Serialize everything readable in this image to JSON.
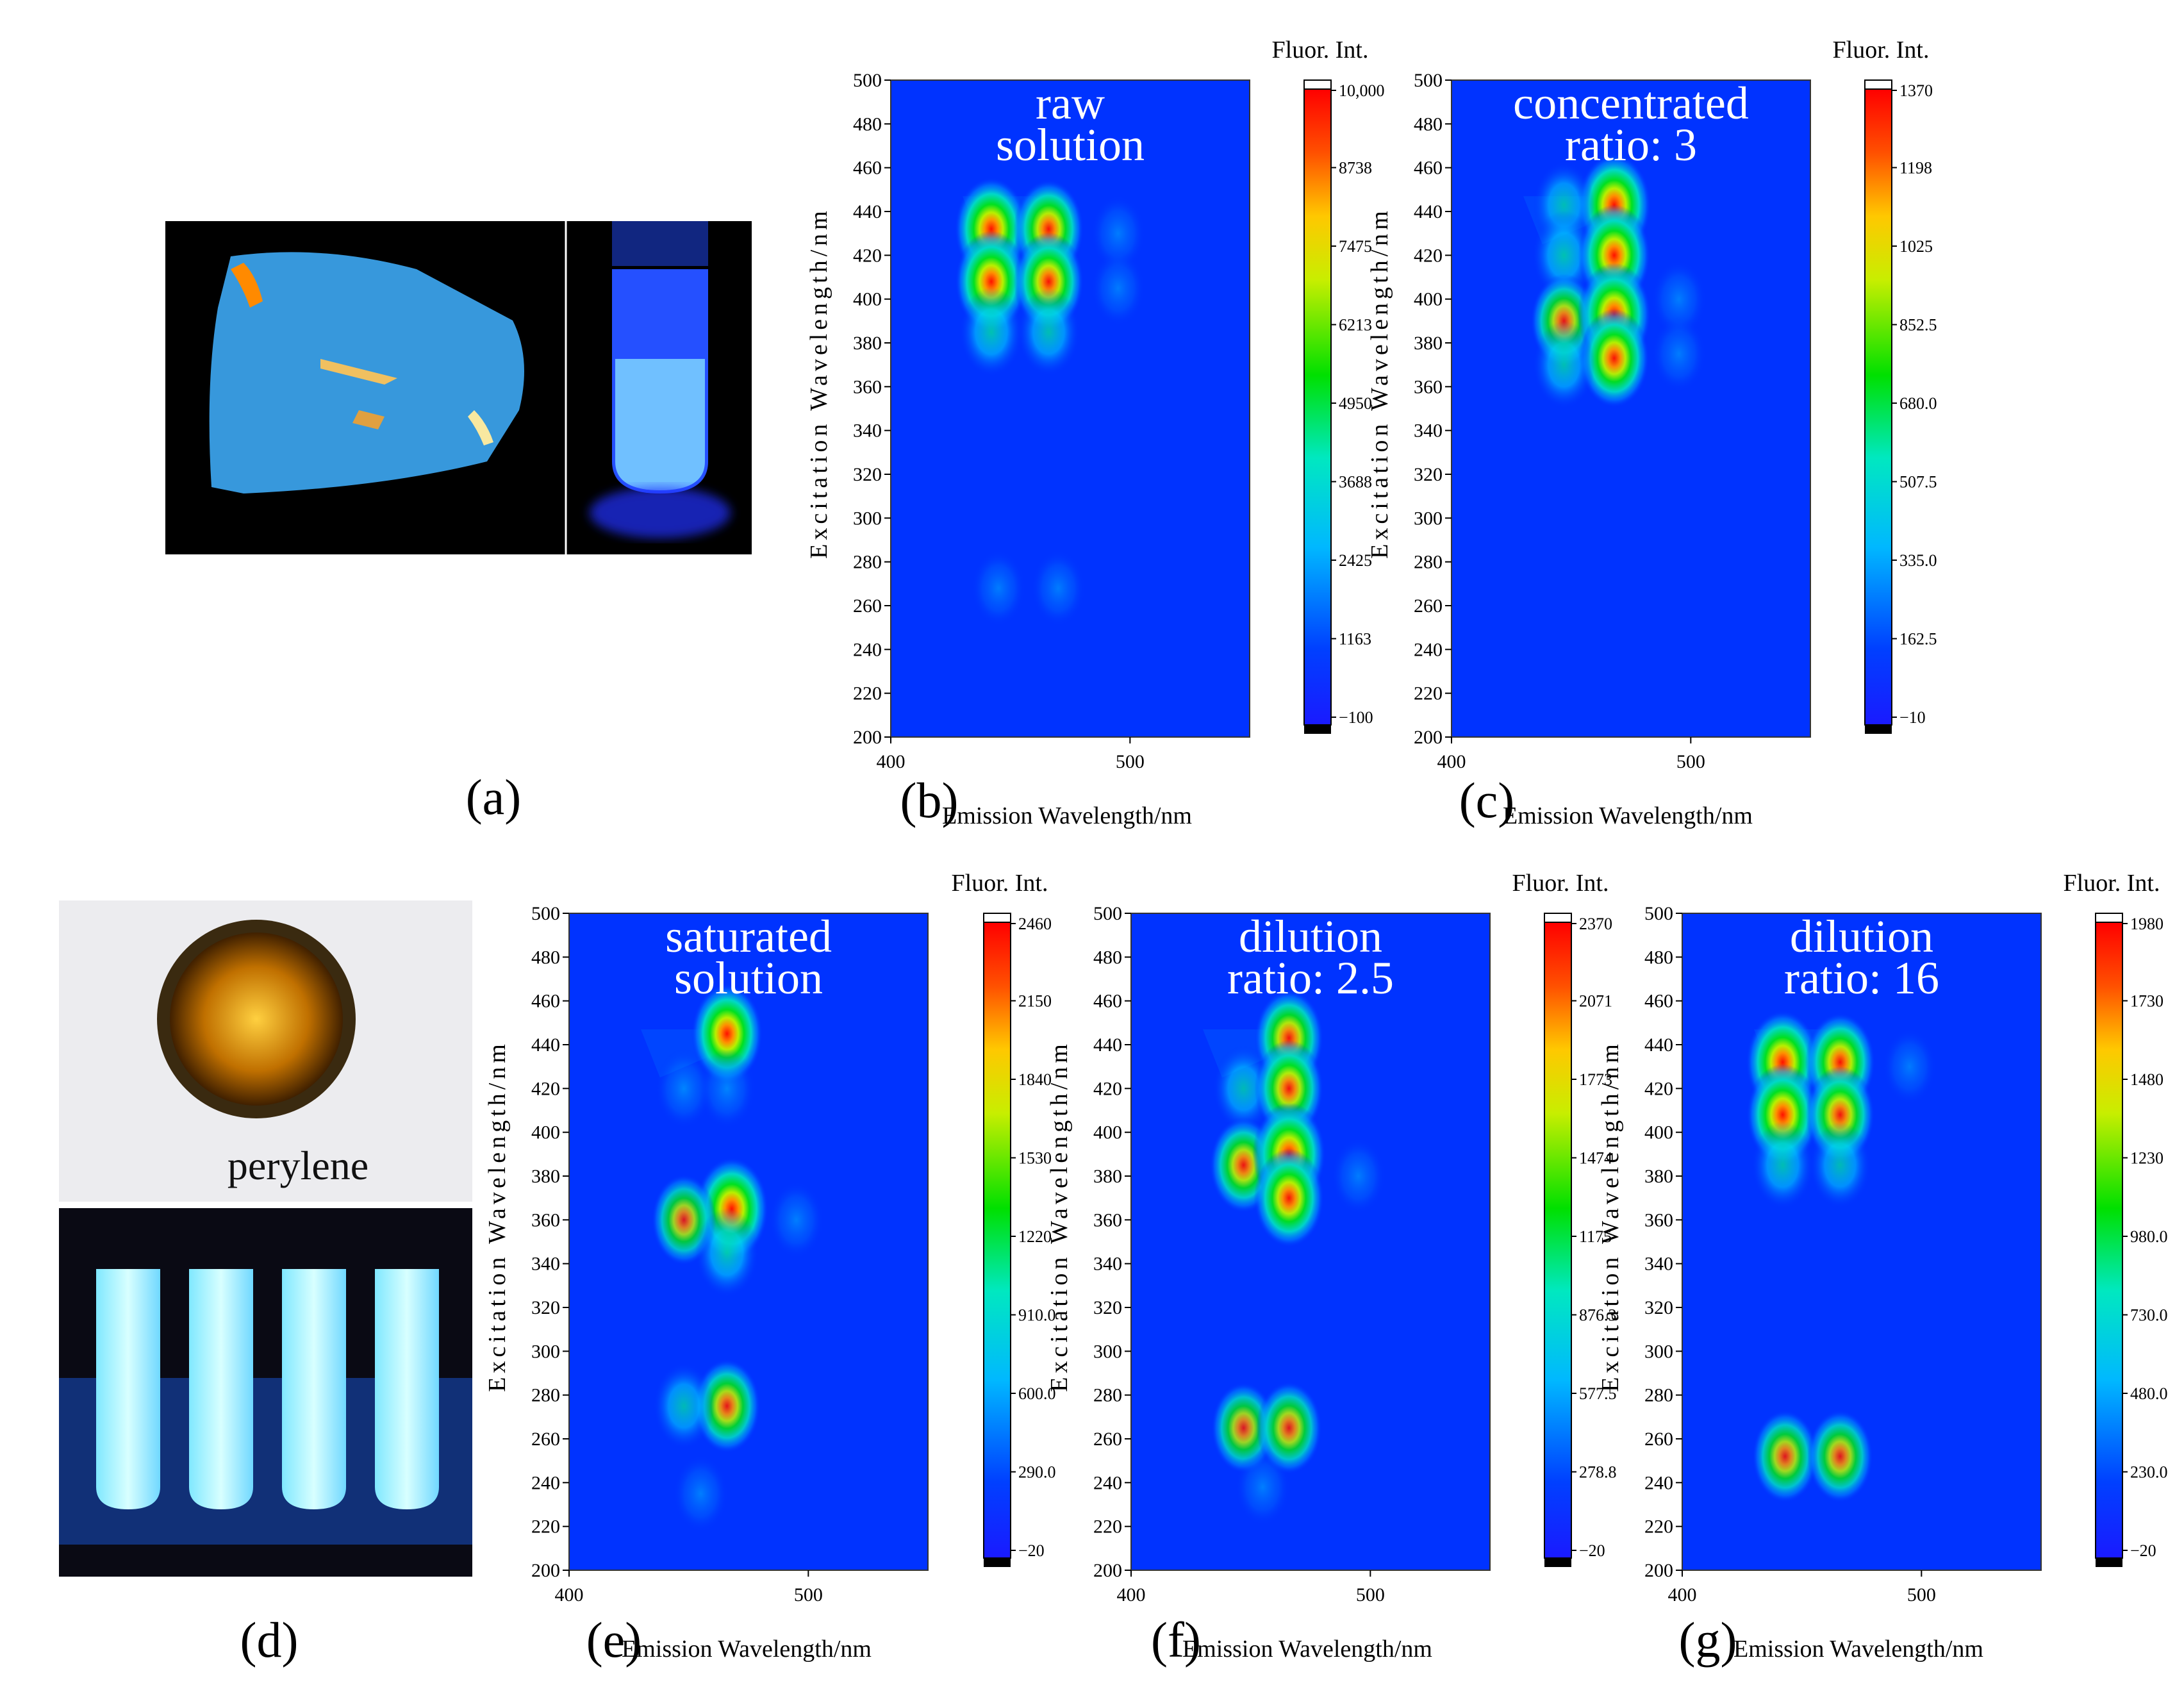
{
  "figure": {
    "photo_a": {
      "label": "(a)"
    },
    "photo_d": {
      "label": "(d)",
      "caption": "perylene"
    }
  },
  "chart_data": [
    {
      "id": "b",
      "type": "heatmap",
      "panel_label": "(b)",
      "title_lines": [
        "raw",
        "solution"
      ],
      "xlabel": "Emission Wavelength/nm",
      "ylabel": "Excitation Wavelength/nm",
      "xlim": [
        400,
        550
      ],
      "ylim": [
        200,
        500
      ],
      "x_ticks": [
        400,
        500
      ],
      "y_ticks": [
        200,
        220,
        240,
        260,
        280,
        300,
        320,
        340,
        360,
        380,
        400,
        420,
        440,
        460,
        480,
        500
      ],
      "colorbar": {
        "title": "Fluor. Int.",
        "ticks": [
          "10,000",
          "8738",
          "7475",
          "6213",
          "4950",
          "3688",
          "2425",
          "1163",
          "−100"
        ]
      },
      "peaks": [
        {
          "em": 442,
          "ex": 432,
          "i": 1.0
        },
        {
          "em": 466,
          "ex": 432,
          "i": 0.85
        },
        {
          "em": 442,
          "ex": 408,
          "i": 0.95
        },
        {
          "em": 466,
          "ex": 408,
          "i": 0.85
        },
        {
          "em": 442,
          "ex": 385,
          "i": 0.55
        },
        {
          "em": 466,
          "ex": 385,
          "i": 0.5
        },
        {
          "em": 495,
          "ex": 430,
          "i": 0.12
        },
        {
          "em": 495,
          "ex": 405,
          "i": 0.1
        },
        {
          "em": 445,
          "ex": 268,
          "i": 0.12
        },
        {
          "em": 470,
          "ex": 268,
          "i": 0.12
        }
      ],
      "scatter_edge": true
    },
    {
      "id": "c",
      "type": "heatmap",
      "panel_label": "(c)",
      "title_lines": [
        "concentrated",
        "ratio: 3"
      ],
      "xlabel": "Emission Wavelength/nm",
      "ylabel": "Excitation Wavelength/nm",
      "xlim": [
        400,
        550
      ],
      "ylim": [
        200,
        500
      ],
      "x_ticks": [
        400,
        500
      ],
      "y_ticks": [
        200,
        220,
        240,
        260,
        280,
        300,
        320,
        340,
        360,
        380,
        400,
        420,
        440,
        460,
        480,
        500
      ],
      "colorbar": {
        "title": "Fluor. Int.",
        "ticks": [
          "1370",
          "1198",
          "1025",
          "852.5",
          "680.0",
          "507.5",
          "335.0",
          "162.5",
          "−10"
        ]
      },
      "peaks": [
        {
          "em": 468,
          "ex": 443,
          "i": 1.0
        },
        {
          "em": 447,
          "ex": 443,
          "i": 0.45
        },
        {
          "em": 447,
          "ex": 420,
          "i": 0.55
        },
        {
          "em": 468,
          "ex": 420,
          "i": 0.95
        },
        {
          "em": 447,
          "ex": 390,
          "i": 0.7
        },
        {
          "em": 468,
          "ex": 393,
          "i": 1.0
        },
        {
          "em": 468,
          "ex": 373,
          "i": 0.85
        },
        {
          "em": 447,
          "ex": 370,
          "i": 0.5
        },
        {
          "em": 495,
          "ex": 400,
          "i": 0.15
        },
        {
          "em": 495,
          "ex": 375,
          "i": 0.12
        }
      ],
      "scatter_edge": true
    },
    {
      "id": "e",
      "type": "heatmap",
      "panel_label": "(e)",
      "title_lines": [
        "saturated",
        "solution"
      ],
      "xlabel": "Emission Wavelength/nm",
      "ylabel": "Excitation Wavelength/nm",
      "xlim": [
        400,
        550
      ],
      "ylim": [
        200,
        500
      ],
      "x_ticks": [
        400,
        500
      ],
      "y_ticks": [
        200,
        220,
        240,
        260,
        280,
        300,
        320,
        340,
        360,
        380,
        400,
        420,
        440,
        460,
        480,
        500
      ],
      "colorbar": {
        "title": "Fluor. Int.",
        "ticks": [
          "2460",
          "2150",
          "1840",
          "1530",
          "1220",
          "910.0",
          "600.0",
          "290.0",
          "−20"
        ]
      },
      "peaks": [
        {
          "em": 466,
          "ex": 445,
          "i": 0.9
        },
        {
          "em": 448,
          "ex": 420,
          "i": 0.25
        },
        {
          "em": 466,
          "ex": 420,
          "i": 0.25
        },
        {
          "em": 468,
          "ex": 365,
          "i": 1.0
        },
        {
          "em": 448,
          "ex": 360,
          "i": 0.6
        },
        {
          "em": 466,
          "ex": 345,
          "i": 0.55
        },
        {
          "em": 466,
          "ex": 275,
          "i": 0.7
        },
        {
          "em": 448,
          "ex": 275,
          "i": 0.45
        },
        {
          "em": 455,
          "ex": 235,
          "i": 0.15
        },
        {
          "em": 495,
          "ex": 360,
          "i": 0.15
        }
      ],
      "scatter_edge": true
    },
    {
      "id": "f",
      "type": "heatmap",
      "panel_label": "(f)",
      "title_lines": [
        "dilution",
        "ratio: 2.5"
      ],
      "xlabel": "Emission Wavelength/nm",
      "ylabel": "Excitation Wavelength/nm",
      "xlim": [
        400,
        550
      ],
      "ylim": [
        200,
        500
      ],
      "x_ticks": [
        400,
        500
      ],
      "y_ticks": [
        200,
        220,
        240,
        260,
        280,
        300,
        320,
        340,
        360,
        380,
        400,
        420,
        440,
        460,
        480,
        500
      ],
      "colorbar": {
        "title": "Fluor. Int.",
        "ticks": [
          "2370",
          "2071",
          "1773",
          "1474",
          "1175",
          "876.3",
          "577.5",
          "278.8",
          "−20"
        ]
      },
      "peaks": [
        {
          "em": 466,
          "ex": 443,
          "i": 0.8
        },
        {
          "em": 447,
          "ex": 420,
          "i": 0.45
        },
        {
          "em": 466,
          "ex": 420,
          "i": 0.8
        },
        {
          "em": 447,
          "ex": 385,
          "i": 0.75
        },
        {
          "em": 466,
          "ex": 390,
          "i": 1.0
        },
        {
          "em": 466,
          "ex": 370,
          "i": 0.85
        },
        {
          "em": 447,
          "ex": 265,
          "i": 0.6
        },
        {
          "em": 466,
          "ex": 265,
          "i": 0.65
        },
        {
          "em": 455,
          "ex": 238,
          "i": 0.15
        },
        {
          "em": 495,
          "ex": 380,
          "i": 0.12
        }
      ],
      "scatter_edge": true
    },
    {
      "id": "g",
      "type": "heatmap",
      "panel_label": "(g)",
      "title_lines": [
        "dilution",
        "ratio: 16"
      ],
      "xlabel": "Emission Wavelength/nm",
      "ylabel": "Excitation Wavelength/nm",
      "xlim": [
        400,
        550
      ],
      "ylim": [
        200,
        500
      ],
      "x_ticks": [
        400,
        500
      ],
      "y_ticks": [
        200,
        220,
        240,
        260,
        280,
        300,
        320,
        340,
        360,
        380,
        400,
        420,
        440,
        460,
        480,
        500
      ],
      "colorbar": {
        "title": "Fluor. Int.",
        "ticks": [
          "1980",
          "1730",
          "1480",
          "1230",
          "980.0",
          "730.0",
          "480.0",
          "230.0",
          "−20"
        ]
      },
      "peaks": [
        {
          "em": 442,
          "ex": 432,
          "i": 1.0
        },
        {
          "em": 466,
          "ex": 432,
          "i": 0.85
        },
        {
          "em": 442,
          "ex": 408,
          "i": 0.95
        },
        {
          "em": 466,
          "ex": 408,
          "i": 0.8
        },
        {
          "em": 442,
          "ex": 385,
          "i": 0.5
        },
        {
          "em": 466,
          "ex": 385,
          "i": 0.45
        },
        {
          "em": 443,
          "ex": 252,
          "i": 0.65
        },
        {
          "em": 466,
          "ex": 252,
          "i": 0.65
        },
        {
          "em": 495,
          "ex": 430,
          "i": 0.1
        }
      ],
      "scatter_edge": true
    }
  ]
}
